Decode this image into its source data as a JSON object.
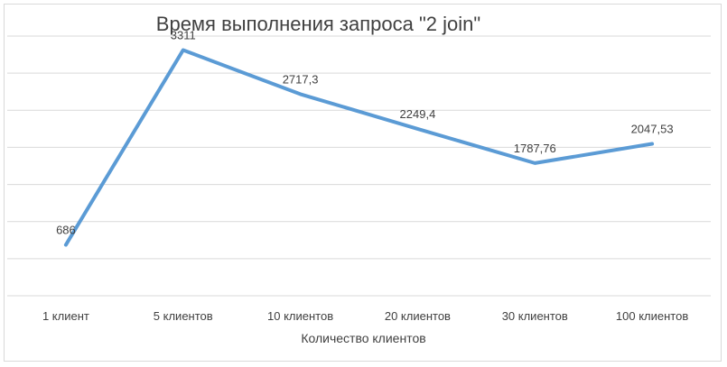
{
  "chart_data": {
    "type": "line",
    "title": "Время выполнения запроса \"2 join\"",
    "xlabel": "Количество клиентов",
    "ylabel": "",
    "categories": [
      "1 клиент",
      "5 клиентов",
      "10 клиентов",
      "20 клиентов",
      "30 клиентов",
      "100 клиентов"
    ],
    "series": [
      {
        "values": [
          686,
          3311,
          2717.3,
          2249.4,
          1787.76,
          2047.53
        ]
      }
    ],
    "data_labels": [
      "686",
      "3311",
      "2717,3",
      "2249,4",
      "1787,76",
      "2047,53"
    ],
    "ylim": [
      0,
      3500
    ],
    "grid": true,
    "line_color": "#5b9bd5"
  }
}
